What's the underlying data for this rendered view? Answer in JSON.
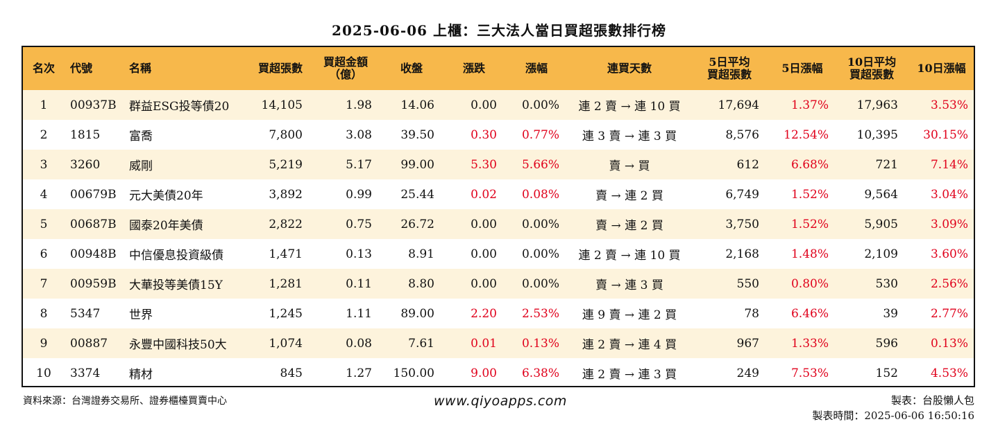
{
  "title": "2025-06-06 上櫃：三大法人當日買超張數排行榜",
  "headers": [
    "名次",
    "代號",
    "名稱",
    "買超張數",
    "買超金額\n（億）",
    "收盤",
    "漲跌",
    "漲幅",
    "連買天數",
    "5日平均\n買超張數",
    "5日漲幅",
    "10日平均\n買超張數",
    "10日漲幅"
  ],
  "rows": [
    {
      "rank": "1",
      "code": "00937B",
      "name": "群益ESG投等債20",
      "buy_lots": "14,105",
      "buy_amount": "1.98",
      "close": "14.06",
      "change": "0.00",
      "pct": "0.00%",
      "streak": "連 2 賣 → 連 10 買",
      "avg5": "17,694",
      "pct5": "1.37%",
      "avg10": "17,963",
      "pct10": "3.53%"
    },
    {
      "rank": "2",
      "code": "1815",
      "name": "富喬",
      "buy_lots": "7,800",
      "buy_amount": "3.08",
      "close": "39.50",
      "change": "0.30",
      "pct": "0.77%",
      "streak": "連 3 賣 → 連 3 買",
      "avg5": "8,576",
      "pct5": "12.54%",
      "avg10": "10,395",
      "pct10": "30.15%"
    },
    {
      "rank": "3",
      "code": "3260",
      "name": "威剛",
      "buy_lots": "5,219",
      "buy_amount": "5.17",
      "close": "99.00",
      "change": "5.30",
      "pct": "5.66%",
      "streak": "賣 → 買",
      "avg5": "612",
      "pct5": "6.68%",
      "avg10": "721",
      "pct10": "7.14%"
    },
    {
      "rank": "4",
      "code": "00679B",
      "name": "元大美債20年",
      "buy_lots": "3,892",
      "buy_amount": "0.99",
      "close": "25.44",
      "change": "0.02",
      "pct": "0.08%",
      "streak": "賣 → 連 2 買",
      "avg5": "6,749",
      "pct5": "1.52%",
      "avg10": "9,564",
      "pct10": "3.04%"
    },
    {
      "rank": "5",
      "code": "00687B",
      "name": "國泰20年美債",
      "buy_lots": "2,822",
      "buy_amount": "0.75",
      "close": "26.72",
      "change": "0.00",
      "pct": "0.00%",
      "streak": "賣 → 連 2 買",
      "avg5": "3,750",
      "pct5": "1.52%",
      "avg10": "5,905",
      "pct10": "3.09%"
    },
    {
      "rank": "6",
      "code": "00948B",
      "name": "中信優息投資級債",
      "buy_lots": "1,471",
      "buy_amount": "0.13",
      "close": "8.91",
      "change": "0.00",
      "pct": "0.00%",
      "streak": "連 2 賣 → 連 10 買",
      "avg5": "2,168",
      "pct5": "1.48%",
      "avg10": "2,109",
      "pct10": "3.60%"
    },
    {
      "rank": "7",
      "code": "00959B",
      "name": "大華投等美債15Y",
      "buy_lots": "1,281",
      "buy_amount": "0.11",
      "close": "8.80",
      "change": "0.00",
      "pct": "0.00%",
      "streak": "賣 → 連 3 買",
      "avg5": "550",
      "pct5": "0.80%",
      "avg10": "530",
      "pct10": "2.56%"
    },
    {
      "rank": "8",
      "code": "5347",
      "name": "世界",
      "buy_lots": "1,245",
      "buy_amount": "1.11",
      "close": "89.00",
      "change": "2.20",
      "pct": "2.53%",
      "streak": "連 9 賣 → 連 2 買",
      "avg5": "78",
      "pct5": "6.46%",
      "avg10": "39",
      "pct10": "2.77%"
    },
    {
      "rank": "9",
      "code": "00887",
      "name": "永豐中國科技50大",
      "buy_lots": "1,074",
      "buy_amount": "0.08",
      "close": "7.61",
      "change": "0.01",
      "pct": "0.13%",
      "streak": "連 2 賣 → 連 4 買",
      "avg5": "967",
      "pct5": "1.33%",
      "avg10": "596",
      "pct10": "0.13%"
    },
    {
      "rank": "10",
      "code": "3374",
      "name": "精材",
      "buy_lots": "845",
      "buy_amount": "1.27",
      "close": "150.00",
      "change": "9.00",
      "pct": "6.38%",
      "streak": "連 2 賣 → 連 3 買",
      "avg5": "249",
      "pct5": "7.53%",
      "avg10": "152",
      "pct10": "4.53%"
    }
  ],
  "footer": {
    "source": "資料來源：台灣證券交易所、證券櫃檯買賣中心",
    "website": "www.qiyoapps.com",
    "maker": "製表：台股懶人包",
    "time": "製表時間：2025-06-06 16:50:16"
  },
  "colors": {
    "header_bg": "#f7b84b",
    "row_alt_bg": "#fdf3dc",
    "positive": "#e0001b"
  }
}
